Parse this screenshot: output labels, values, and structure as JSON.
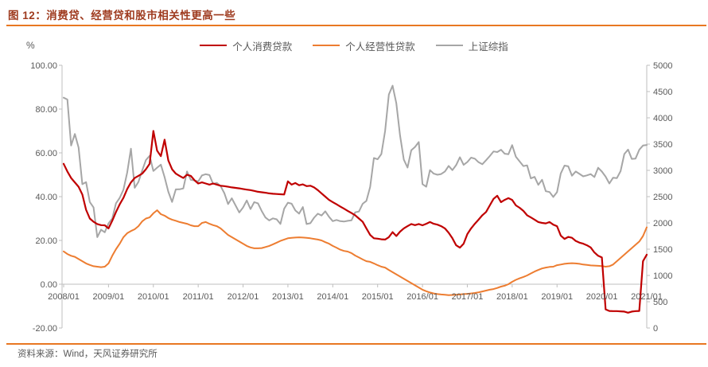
{
  "page": {
    "title": "图 12：消费贷、经营贷和股市相关性更高一些",
    "source": "资料来源：Wind，天风证券研究所",
    "unit_label": "%"
  },
  "colors": {
    "title_text": "#9E3A1E",
    "rule_orange": "#E87722",
    "axis_text": "#595959",
    "axis_line": "#BFBFBF",
    "series_consumer": "#C00000",
    "series_business": "#ED7D31",
    "series_index": "#A6A6A6"
  },
  "chart_data": {
    "type": "line",
    "title": "消费贷、经营贷和股市相关性更高一些",
    "xlabel": "",
    "ylabel_left": "%",
    "frequency": "monthly",
    "x_start": "2008/01",
    "x_end": "2021/01",
    "x_tick_labels": [
      "2008/01",
      "2009/01",
      "2010/01",
      "2011/01",
      "2012/01",
      "2013/01",
      "2014/01",
      "2015/01",
      "2016/01",
      "2017/01",
      "2018/01",
      "2019/01",
      "2020/01",
      "2021/01"
    ],
    "left_axis": {
      "min": -20,
      "max": 100,
      "tick_labels": [
        "100.00",
        "80.00",
        "60.00",
        "40.00",
        "20.00",
        "0.00",
        "-20.00"
      ]
    },
    "right_axis": {
      "min": 0,
      "max": 5000,
      "tick_labels": [
        "5000",
        "4500",
        "4000",
        "3500",
        "3000",
        "2500",
        "2000",
        "1500",
        "1000",
        "500",
        "0"
      ]
    },
    "grid": false,
    "legend_position": "top-center",
    "series": [
      {
        "name": "个人消费贷款",
        "axis": "left",
        "color": "#C00000",
        "values": [
          55,
          51.5,
          48.5,
          46.5,
          44.5,
          41,
          34,
          30,
          28.5,
          27.5,
          27,
          26.9,
          25.5,
          29,
          33,
          36.5,
          39.5,
          43.5,
          46.5,
          48.5,
          49.5,
          50.5,
          52.5,
          55,
          70,
          61,
          58.5,
          66,
          56.5,
          52.5,
          50.5,
          49.5,
          48.5,
          50,
          49.5,
          47.5,
          46,
          46.5,
          46,
          45.5,
          46,
          45.5,
          45,
          44.8,
          44.5,
          44.2,
          44,
          43.8,
          43.5,
          43.2,
          43,
          42.6,
          42.2,
          42,
          41.8,
          41.5,
          41.3,
          41.2,
          41.1,
          41,
          47,
          45.5,
          46.2,
          45.2,
          45.6,
          44.8,
          45,
          44.2,
          43,
          41.5,
          40,
          38.5,
          37.5,
          36.5,
          35.5,
          34.5,
          33.5,
          32.5,
          31.5,
          30,
          28.5,
          25.5,
          22.5,
          21,
          20.8,
          20.5,
          20.4,
          21.5,
          23.8,
          22,
          24,
          25.5,
          26.5,
          27.5,
          27,
          27.5,
          26.9,
          27.6,
          28.4,
          27.6,
          27.2,
          26.5,
          25.5,
          23.5,
          21,
          17.8,
          16.7,
          18.5,
          22.9,
          25.5,
          27.6,
          29.5,
          31.5,
          33,
          36,
          39,
          40.4,
          37.5,
          38.5,
          39.3,
          38.5,
          36,
          34.9,
          33.5,
          31.5,
          30.5,
          29.5,
          28.4,
          28,
          27.8,
          28.4,
          27.2,
          26.5,
          22.2,
          20.7,
          21.6,
          21.2,
          19.8,
          19,
          18.5,
          17.8,
          16.8,
          14.5,
          13,
          12.2,
          -11.5,
          -12.2,
          -12.3,
          -12.3,
          -12.4,
          -12.5,
          -13,
          -12.5,
          -12.3,
          -12.2,
          10.5,
          13.5
        ]
      },
      {
        "name": "个人经营性贷款",
        "axis": "left",
        "color": "#ED7D31",
        "values": [
          15,
          13.8,
          13,
          12.5,
          11.5,
          10.5,
          9.5,
          8.8,
          8.2,
          8,
          7.8,
          8,
          9.5,
          13,
          16,
          18.5,
          21.5,
          23.3,
          24.3,
          25.1,
          26.5,
          28.7,
          30,
          30.5,
          32.4,
          33.8,
          32,
          31.3,
          30.2,
          29.5,
          29,
          28.4,
          28,
          27.6,
          26.9,
          26.5,
          26.5,
          28,
          28.4,
          27.6,
          27,
          26.5,
          25.5,
          24,
          22.5,
          21.5,
          20.5,
          19.5,
          18.5,
          17.5,
          16.8,
          16.4,
          16.4,
          16.5,
          17,
          17.5,
          18.2,
          19,
          19.8,
          20.4,
          21,
          21.2,
          21.3,
          21.4,
          21.3,
          21.2,
          21,
          20.7,
          20.4,
          20,
          19.2,
          18.5,
          17.5,
          16.7,
          15.8,
          15.2,
          14.9,
          14.2,
          13.1,
          12.2,
          11.3,
          10.5,
          10.2,
          9.5,
          8.7,
          8,
          7.6,
          6.5,
          5.5,
          4.5,
          3.5,
          2.5,
          1.5,
          0.5,
          -0.5,
          -1.5,
          -2.5,
          -3.2,
          -3.8,
          -4.2,
          -4.5,
          -4.7,
          -4.8,
          -5,
          -4.9,
          -4.8,
          -4.7,
          -4.5,
          -4.4,
          -4.2,
          -4,
          -3.7,
          -3.3,
          -2.9,
          -2.5,
          -2.2,
          -1.7,
          -1.1,
          -0.7,
          0,
          1.1,
          2,
          2.7,
          3.3,
          4,
          4.9,
          5.8,
          6.5,
          7.2,
          7.6,
          7.9,
          8,
          8.7,
          9,
          9.3,
          9.5,
          9.6,
          9.5,
          9.3,
          9,
          8.8,
          8.6,
          8.5,
          8.4,
          8.3,
          8,
          8.2,
          9,
          10.5,
          12,
          13.5,
          15,
          16.5,
          18,
          19.5,
          22,
          26
        ]
      },
      {
        "name": "上证综指",
        "axis": "right",
        "color": "#A6A6A6",
        "values": [
          4383,
          4348,
          3472,
          3693,
          3433,
          2736,
          2776,
          2397,
          2294,
          1729,
          1871,
          1821,
          1991,
          2083,
          2373,
          2478,
          2633,
          2959,
          3412,
          2668,
          2779,
          2995,
          3195,
          3277,
          2989,
          3052,
          3109,
          2871,
          2592,
          2398,
          2638,
          2639,
          2656,
          2979,
          2820,
          2808,
          2790,
          2905,
          2928,
          2911,
          2743,
          2762,
          2701,
          2567,
          2359,
          2468,
          2333,
          2199,
          2293,
          2428,
          2263,
          2396,
          2372,
          2225,
          2103,
          2047,
          2086,
          2068,
          1980,
          2269,
          2385,
          2365,
          2237,
          2177,
          2301,
          1979,
          1994,
          2098,
          2175,
          2141,
          2221,
          2116,
          2033,
          2056,
          2033,
          2026,
          2039,
          2048,
          2201,
          2217,
          2364,
          2420,
          2683,
          3235,
          3210,
          3310,
          3748,
          4442,
          4612,
          4277,
          3664,
          3206,
          3053,
          3383,
          3445,
          3539,
          2738,
          2688,
          3004,
          2938,
          2917,
          2930,
          2979,
          3085,
          3005,
          3100,
          3250,
          3104,
          3159,
          3242,
          3223,
          3155,
          3117,
          3192,
          3273,
          3361,
          3349,
          3393,
          3317,
          3307,
          3481,
          3259,
          3169,
          3082,
          3095,
          2847,
          2876,
          2725,
          2821,
          2603,
          2588,
          2494,
          2585,
          2941,
          3091,
          3078,
          2899,
          2979,
          2933,
          2886,
          2905,
          2929,
          2872,
          3050,
          2977,
          2880,
          2750,
          2860,
          2852,
          2985,
          3310,
          3396,
          3218,
          3225,
          3392,
          3473,
          3483
        ]
      }
    ]
  }
}
